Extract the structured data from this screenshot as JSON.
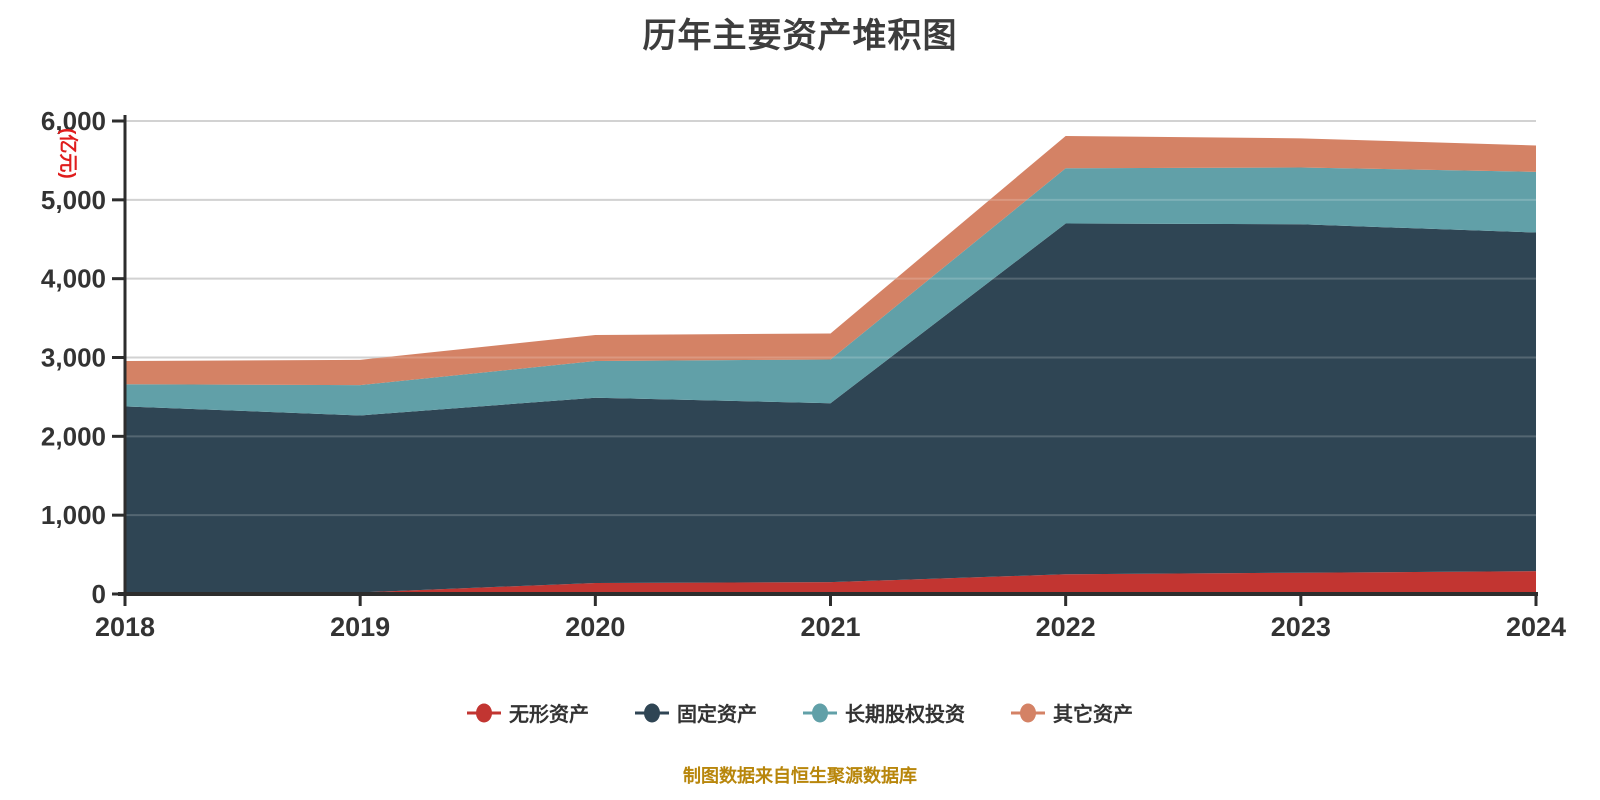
{
  "source_note": "制图数据来自恒生聚源数据库",
  "colors": {
    "background": "#ffffff",
    "title_text": "#3d3d3d",
    "axis_line": "#2d2d2d",
    "axis_label": "#333333",
    "gridline": "#c8c8c8",
    "unit_label": "#e01d1d",
    "source_note": "#b8860b"
  },
  "chart_data": {
    "type": "area",
    "stacked": true,
    "title": "历年主要资产堆积图",
    "ylabel": "(亿元)",
    "xlabel": "",
    "categories": [
      "2018",
      "2019",
      "2020",
      "2021",
      "2022",
      "2023",
      "2024"
    ],
    "series": [
      {
        "name": "无形资产",
        "slug": "intangible-assets",
        "color": "#c23531",
        "values": [
          10,
          20,
          140,
          150,
          250,
          270,
          290
        ]
      },
      {
        "name": "固定资产",
        "slug": "fixed-assets",
        "color": "#2f4554",
        "values": [
          2370,
          2245,
          2350,
          2270,
          4450,
          4420,
          4295
        ]
      },
      {
        "name": "长期股权投资",
        "slug": "long-term-equity-investment",
        "color": "#61a0a8",
        "values": [
          280,
          385,
          465,
          555,
          700,
          720,
          770
        ]
      },
      {
        "name": "其它资产",
        "slug": "other-assets",
        "color": "#d48265",
        "values": [
          295,
          320,
          330,
          330,
          410,
          370,
          335
        ]
      }
    ],
    "totals": [
      2955,
      2970,
      3285,
      3305,
      5810,
      5780,
      5690
    ],
    "ylim": [
      0,
      6000
    ],
    "y_ticks": [
      0,
      1000,
      2000,
      3000,
      4000,
      5000,
      6000
    ],
    "grid": true,
    "legend_position": "bottom",
    "legend_marker": "line-circle-icon"
  }
}
